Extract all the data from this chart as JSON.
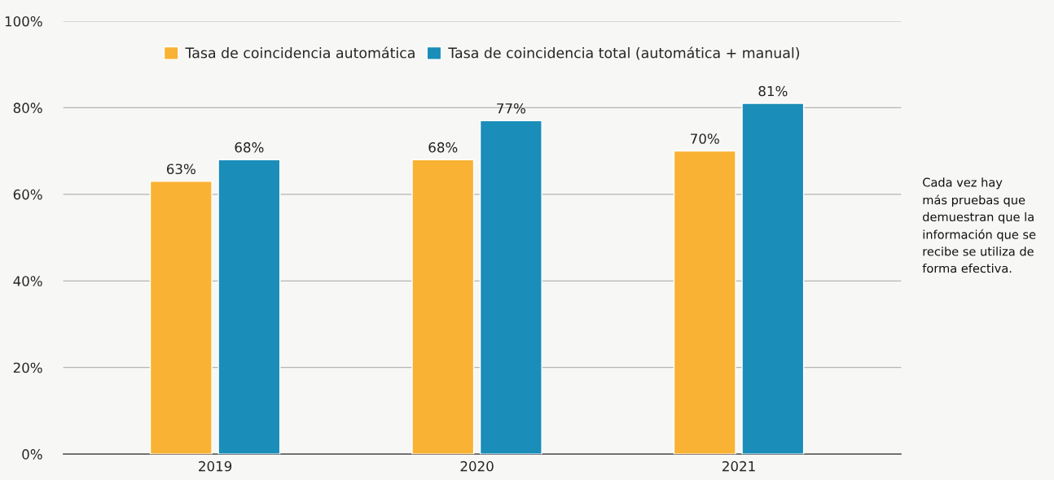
{
  "chart_data": {
    "type": "bar",
    "categories": [
      "2019",
      "2020",
      "2021"
    ],
    "series": [
      {
        "name": "Tasa de coincidencia automática",
        "color": "#f9b233",
        "values": [
          63,
          68,
          70
        ],
        "value_labels": [
          "63%",
          "68%",
          "70%"
        ]
      },
      {
        "name": "Tasa de coincidencia total (automática + manual)",
        "color": "#1a8db8",
        "values": [
          68,
          77,
          81
        ],
        "value_labels": [
          "68%",
          "77%",
          "81%"
        ]
      }
    ],
    "ylim": [
      0,
      100
    ],
    "yticks": [
      {
        "value": 0,
        "label": "0%"
      },
      {
        "value": 20,
        "label": "20%"
      },
      {
        "value": 40,
        "label": "40%"
      },
      {
        "value": 60,
        "label": "60%"
      },
      {
        "value": 80,
        "label": "80%"
      },
      {
        "value": 100,
        "label": "100%"
      }
    ],
    "grid": "y",
    "legend": "top",
    "annotations": [
      "Cada vez hay\nmás pruebas que\ndemuestran que la\ninformación que se\nrecibe se utiliza de\nforma efectiva."
    ]
  }
}
